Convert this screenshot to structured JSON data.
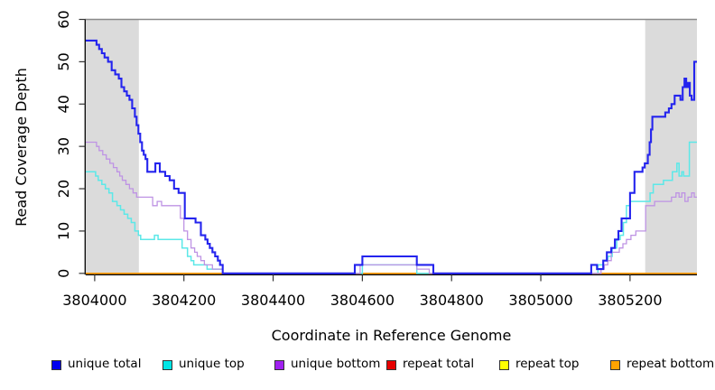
{
  "legend": {
    "items": [
      {
        "label": "unique total",
        "color": "#0000EE"
      },
      {
        "label": "unique top",
        "color": "#00E5E5"
      },
      {
        "label": "unique bottom",
        "color": "#A020F0"
      },
      {
        "label": "repeat total",
        "color": "#E60000"
      },
      {
        "label": "repeat top",
        "color": "#FFFF00"
      },
      {
        "label": "repeat bottom",
        "color": "#FFA300"
      }
    ]
  },
  "chart_data": {
    "type": "line",
    "line_style": "step-after",
    "title": "",
    "xlabel": "Coordinate in Reference Genome",
    "ylabel": "Read Coverage Depth",
    "xlim": [
      3803980,
      3805350
    ],
    "ylim": [
      0,
      60
    ],
    "xticks": [
      3804000,
      3804200,
      3804400,
      3804600,
      3804800,
      3805000,
      3805200
    ],
    "yticks": [
      0,
      10,
      20,
      30,
      40,
      50,
      60
    ],
    "grid": false,
    "legend_position": "bottom",
    "shade_color": "#DBDBDB",
    "shaded_regions": [
      {
        "from": 3803980,
        "to": 3804099
      },
      {
        "from": 3805234,
        "to": 3805350
      }
    ],
    "draw_order": [
      3,
      4,
      5,
      1,
      2,
      0
    ],
    "series": [
      {
        "name": "unique total",
        "color": "#2424EE",
        "width": 2.1,
        "points": [
          [
            3803980,
            55
          ],
          [
            3804004,
            54
          ],
          [
            3804010,
            53
          ],
          [
            3804016,
            52
          ],
          [
            3804022,
            51
          ],
          [
            3804030,
            50
          ],
          [
            3804038,
            48
          ],
          [
            3804046,
            47
          ],
          [
            3804054,
            46
          ],
          [
            3804060,
            44
          ],
          [
            3804066,
            43
          ],
          [
            3804072,
            42
          ],
          [
            3804078,
            41
          ],
          [
            3804084,
            39
          ],
          [
            3804090,
            37
          ],
          [
            3804094,
            35
          ],
          [
            3804098,
            33
          ],
          [
            3804102,
            31
          ],
          [
            3804106,
            29
          ],
          [
            3804110,
            28
          ],
          [
            3804114,
            27
          ],
          [
            3804118,
            24
          ],
          [
            3804136,
            26
          ],
          [
            3804146,
            24
          ],
          [
            3804158,
            23
          ],
          [
            3804168,
            22
          ],
          [
            3804178,
            20
          ],
          [
            3804188,
            19
          ],
          [
            3804202,
            13
          ],
          [
            3804226,
            12
          ],
          [
            3804238,
            9
          ],
          [
            3804248,
            8
          ],
          [
            3804253,
            7
          ],
          [
            3804258,
            6
          ],
          [
            3804264,
            5
          ],
          [
            3804270,
            4
          ],
          [
            3804276,
            3
          ],
          [
            3804281,
            2
          ],
          [
            3804287,
            0
          ],
          [
            3804583,
            2
          ],
          [
            3804600,
            4
          ],
          [
            3804722,
            2
          ],
          [
            3804759,
            0
          ],
          [
            3805113,
            2
          ],
          [
            3805126,
            1
          ],
          [
            3805140,
            3
          ],
          [
            3805148,
            5
          ],
          [
            3805158,
            6
          ],
          [
            3805166,
            8
          ],
          [
            3805174,
            10
          ],
          [
            3805181,
            13
          ],
          [
            3805200,
            19
          ],
          [
            3805210,
            24
          ],
          [
            3805228,
            25
          ],
          [
            3805233,
            26
          ],
          [
            3805240,
            28
          ],
          [
            3805244,
            31
          ],
          [
            3805247,
            34
          ],
          [
            3805250,
            37
          ],
          [
            3805279,
            38
          ],
          [
            3805287,
            39
          ],
          [
            3805293,
            40
          ],
          [
            3805300,
            42
          ],
          [
            3805313,
            41
          ],
          [
            3805318,
            44
          ],
          [
            3805322,
            46
          ],
          [
            3805326,
            44
          ],
          [
            3805330,
            45
          ],
          [
            3805334,
            42
          ],
          [
            3805338,
            41
          ],
          [
            3805344,
            50
          ]
        ]
      },
      {
        "name": "unique top",
        "color": "#5CE8E8",
        "width": 1.5,
        "points": [
          [
            3803980,
            24
          ],
          [
            3804002,
            23
          ],
          [
            3804008,
            22
          ],
          [
            3804016,
            21
          ],
          [
            3804024,
            20
          ],
          [
            3804032,
            19
          ],
          [
            3804040,
            17
          ],
          [
            3804050,
            16
          ],
          [
            3804058,
            15
          ],
          [
            3804066,
            14
          ],
          [
            3804074,
            13
          ],
          [
            3804082,
            12
          ],
          [
            3804090,
            10
          ],
          [
            3804098,
            9
          ],
          [
            3804103,
            8
          ],
          [
            3804134,
            9
          ],
          [
            3804142,
            8
          ],
          [
            3804196,
            6
          ],
          [
            3804208,
            4
          ],
          [
            3804216,
            3
          ],
          [
            3804222,
            2
          ],
          [
            3804252,
            1
          ],
          [
            3804287,
            0
          ],
          [
            3804600,
            2
          ],
          [
            3804722,
            0
          ],
          [
            3805128,
            2
          ],
          [
            3805140,
            3
          ],
          [
            3805150,
            4
          ],
          [
            3805160,
            6
          ],
          [
            3805170,
            8
          ],
          [
            3805178,
            9
          ],
          [
            3805185,
            12
          ],
          [
            3805192,
            16
          ],
          [
            3805200,
            17
          ],
          [
            3805245,
            19
          ],
          [
            3805252,
            21
          ],
          [
            3805275,
            22
          ],
          [
            3805295,
            24
          ],
          [
            3805305,
            26
          ],
          [
            3805310,
            23
          ],
          [
            3805316,
            24
          ],
          [
            3805320,
            23
          ],
          [
            3805333,
            31
          ]
        ]
      },
      {
        "name": "unique bottom",
        "color": "#BE93E4",
        "width": 1.3,
        "points": [
          [
            3803980,
            31
          ],
          [
            3804004,
            30
          ],
          [
            3804010,
            29
          ],
          [
            3804018,
            28
          ],
          [
            3804026,
            27
          ],
          [
            3804034,
            26
          ],
          [
            3804042,
            25
          ],
          [
            3804050,
            24
          ],
          [
            3804056,
            23
          ],
          [
            3804062,
            22
          ],
          [
            3804070,
            21
          ],
          [
            3804078,
            20
          ],
          [
            3804086,
            19
          ],
          [
            3804094,
            18
          ],
          [
            3804130,
            16
          ],
          [
            3804140,
            17
          ],
          [
            3804150,
            16
          ],
          [
            3804192,
            13
          ],
          [
            3804200,
            10
          ],
          [
            3804208,
            8
          ],
          [
            3804216,
            6
          ],
          [
            3804224,
            5
          ],
          [
            3804230,
            4
          ],
          [
            3804238,
            3
          ],
          [
            3804246,
            2
          ],
          [
            3804264,
            1
          ],
          [
            3804287,
            0
          ],
          [
            3804595,
            2
          ],
          [
            3804722,
            1
          ],
          [
            3804750,
            0
          ],
          [
            3805135,
            1
          ],
          [
            3805142,
            2
          ],
          [
            3805150,
            3
          ],
          [
            3805158,
            5
          ],
          [
            3805176,
            6
          ],
          [
            3805184,
            7
          ],
          [
            3805192,
            8
          ],
          [
            3805202,
            9
          ],
          [
            3805213,
            10
          ],
          [
            3805235,
            16
          ],
          [
            3805255,
            17
          ],
          [
            3805293,
            18
          ],
          [
            3805303,
            19
          ],
          [
            3805310,
            18
          ],
          [
            3805316,
            19
          ],
          [
            3805323,
            17
          ],
          [
            3805330,
            18
          ],
          [
            3805338,
            19
          ],
          [
            3805344,
            18
          ]
        ]
      },
      {
        "name": "repeat total",
        "color": "#E60000",
        "width": 1.2,
        "points": [
          [
            3803980,
            0
          ]
        ]
      },
      {
        "name": "repeat top",
        "color": "#FFFF00",
        "width": 1.2,
        "points": [
          [
            3803980,
            0
          ]
        ]
      },
      {
        "name": "repeat bottom",
        "color": "#FF9B00",
        "width": 1.6,
        "points": [
          [
            3803980,
            0
          ]
        ]
      }
    ]
  }
}
